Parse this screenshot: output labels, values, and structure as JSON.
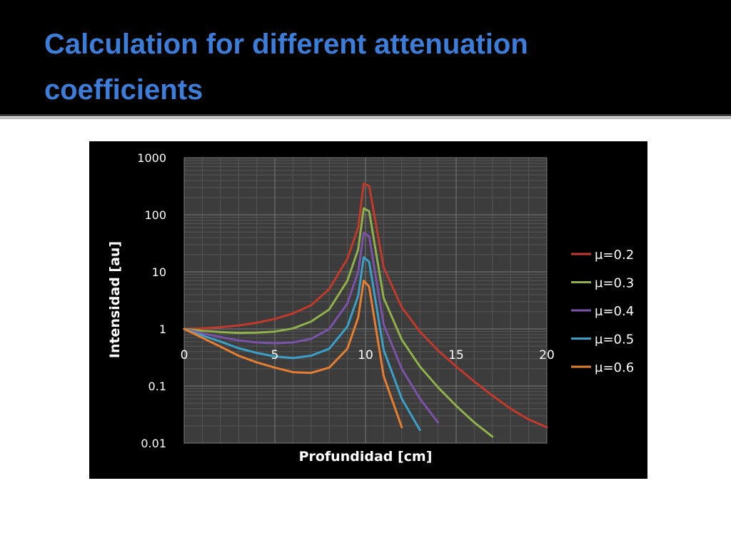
{
  "slide": {
    "title": "Calculation for different attenuation coefficients"
  },
  "colors": {
    "title": "#3b7dd8",
    "plot_background": "#3c3c3c",
    "panel_background": "#000000"
  },
  "chart_data": {
    "type": "line",
    "title": "",
    "xlabel": "Profundidad [cm]",
    "ylabel": "Intensidad [au]",
    "xlim": [
      0,
      20
    ],
    "ylim": [
      0.01,
      1000
    ],
    "yscale": "log",
    "grid": true,
    "legend": "right",
    "x_ticks": [
      "0",
      "5",
      "10",
      "15",
      "20"
    ],
    "y_ticks": [
      "1000",
      "100",
      "10",
      "1",
      "0.1",
      "0.01"
    ],
    "series": [
      {
        "name": "μ=0.2",
        "color": "#c0392b",
        "x": [
          0,
          1,
          2,
          3,
          4,
          5,
          6,
          7,
          8,
          9,
          9.6,
          9.9,
          10.2,
          11,
          12,
          13,
          14,
          15,
          16,
          17,
          18,
          19,
          20
        ],
        "y": [
          1.0,
          1.02,
          1.07,
          1.15,
          1.28,
          1.5,
          1.87,
          2.6,
          5.0,
          17,
          60,
          350,
          320,
          12,
          2.4,
          0.9,
          0.42,
          0.22,
          0.12,
          0.068,
          0.04,
          0.026,
          0.019
        ]
      },
      {
        "name": "μ=0.3",
        "color": "#8fb04a",
        "x": [
          0,
          1,
          2,
          3,
          4,
          5,
          6,
          7,
          8,
          9,
          9.6,
          9.9,
          10.2,
          11,
          12,
          13,
          14,
          15,
          16,
          17
        ],
        "y": [
          1.0,
          0.93,
          0.88,
          0.85,
          0.86,
          0.9,
          1.02,
          1.35,
          2.2,
          7.0,
          25,
          130,
          115,
          3.5,
          0.65,
          0.22,
          0.095,
          0.045,
          0.023,
          0.013
        ]
      },
      {
        "name": "μ=0.4",
        "color": "#7a52a8",
        "x": [
          0,
          1,
          2,
          3,
          4,
          5,
          6,
          7,
          8,
          9,
          9.6,
          9.9,
          10.2,
          11,
          12,
          13,
          14
        ],
        "y": [
          1.0,
          0.84,
          0.72,
          0.63,
          0.58,
          0.56,
          0.58,
          0.67,
          1.0,
          2.8,
          10,
          48,
          42,
          1.2,
          0.2,
          0.06,
          0.023
        ]
      },
      {
        "name": "μ=0.5",
        "color": "#3ba0c8",
        "x": [
          0,
          1,
          2,
          3,
          4,
          5,
          6,
          7,
          8,
          9,
          9.6,
          9.9,
          10.2,
          11,
          12,
          13
        ],
        "y": [
          1.0,
          0.77,
          0.6,
          0.46,
          0.38,
          0.33,
          0.31,
          0.34,
          0.45,
          1.1,
          3.8,
          18,
          15,
          0.43,
          0.06,
          0.017
        ]
      },
      {
        "name": "μ=0.6",
        "color": "#e67e32",
        "x": [
          0,
          1,
          2,
          3,
          4,
          5,
          6,
          7,
          8,
          9,
          9.6,
          9.9,
          10.2,
          11,
          12
        ],
        "y": [
          1.0,
          0.7,
          0.49,
          0.34,
          0.26,
          0.21,
          0.175,
          0.17,
          0.21,
          0.45,
          1.6,
          7.0,
          5.5,
          0.15,
          0.019
        ]
      }
    ]
  }
}
